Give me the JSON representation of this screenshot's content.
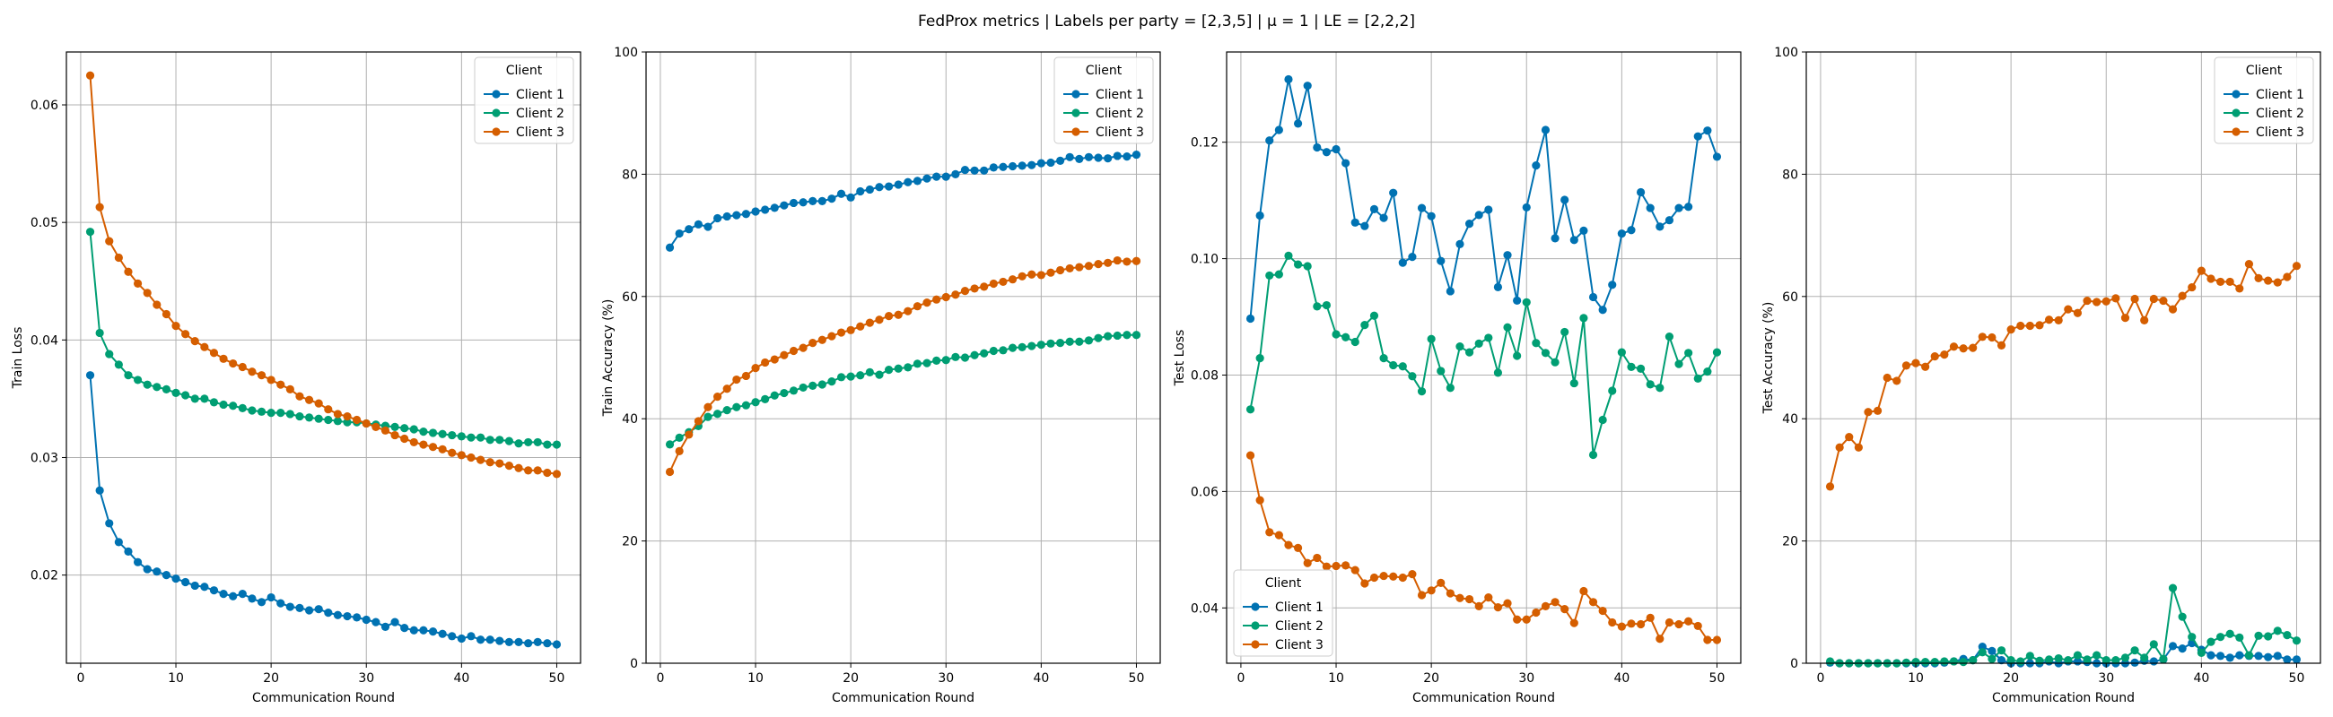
{
  "figure": {
    "title": "FedProx metrics | Labels per party = [2,3,5] | μ = 1 | LE = [2,2,2]"
  },
  "colors": {
    "Client 1": "#0072b2",
    "Client 2": "#009e73",
    "Client 3": "#d55e00"
  },
  "chart_data": [
    {
      "type": "line",
      "xlabel": "Communication Round",
      "ylabel": "Train Loss",
      "xlim": [
        -1.5,
        52.5
      ],
      "ylim": [
        0.0125,
        0.0645
      ],
      "xticks": [
        0,
        10,
        20,
        30,
        40,
        50
      ],
      "yticks": [
        0.02,
        0.03,
        0.04,
        0.05,
        0.06
      ],
      "ytick_labels": [
        "0.02",
        "0.03",
        "0.04",
        "0.05",
        "0.06"
      ],
      "grid": true,
      "legend_title": "Client",
      "legend_position": "upper right",
      "x": [
        1,
        2,
        3,
        4,
        5,
        6,
        7,
        8,
        9,
        10,
        11,
        12,
        13,
        14,
        15,
        16,
        17,
        18,
        19,
        20,
        21,
        22,
        23,
        24,
        25,
        26,
        27,
        28,
        29,
        30,
        31,
        32,
        33,
        34,
        35,
        36,
        37,
        38,
        39,
        40,
        41,
        42,
        43,
        44,
        45,
        46,
        47,
        48,
        49,
        50
      ],
      "series": [
        {
          "name": "Client 1",
          "values": [
            0.037,
            0.0272,
            0.0244,
            0.0228,
            0.022,
            0.0211,
            0.0205,
            0.0203,
            0.02,
            0.0197,
            0.0194,
            0.0191,
            0.019,
            0.0187,
            0.0184,
            0.0182,
            0.0184,
            0.018,
            0.0177,
            0.0181,
            0.0176,
            0.0173,
            0.0172,
            0.017,
            0.0171,
            0.0168,
            0.0166,
            0.0165,
            0.0164,
            0.0162,
            0.016,
            0.0156,
            0.016,
            0.0155,
            0.0153,
            0.0153,
            0.0152,
            0.015,
            0.0148,
            0.0146,
            0.0148,
            0.0145,
            0.0145,
            0.0144,
            0.0143,
            0.0143,
            0.0142,
            0.0143,
            0.0142,
            0.0141
          ]
        },
        {
          "name": "Client 2",
          "values": [
            0.0492,
            0.0406,
            0.0388,
            0.0379,
            0.037,
            0.0366,
            0.0362,
            0.036,
            0.0358,
            0.0355,
            0.0353,
            0.035,
            0.035,
            0.0347,
            0.0345,
            0.0344,
            0.0342,
            0.034,
            0.0339,
            0.0338,
            0.0338,
            0.0337,
            0.0335,
            0.0334,
            0.0333,
            0.0332,
            0.0331,
            0.033,
            0.033,
            0.0329,
            0.0328,
            0.0327,
            0.0326,
            0.0325,
            0.0324,
            0.0322,
            0.0321,
            0.032,
            0.0319,
            0.0318,
            0.0317,
            0.0317,
            0.0315,
            0.0315,
            0.0314,
            0.0312,
            0.0313,
            0.0313,
            0.0311,
            0.0311
          ]
        },
        {
          "name": "Client 3",
          "values": [
            0.0625,
            0.0513,
            0.0484,
            0.047,
            0.0458,
            0.0448,
            0.044,
            0.043,
            0.0422,
            0.0412,
            0.0405,
            0.0399,
            0.0394,
            0.0389,
            0.0384,
            0.038,
            0.0377,
            0.0373,
            0.037,
            0.0366,
            0.0362,
            0.0358,
            0.0352,
            0.0349,
            0.0346,
            0.0341,
            0.0337,
            0.0335,
            0.0332,
            0.0329,
            0.0326,
            0.0323,
            0.0319,
            0.0316,
            0.0313,
            0.0311,
            0.0309,
            0.0307,
            0.0304,
            0.0302,
            0.03,
            0.0298,
            0.0296,
            0.0295,
            0.0293,
            0.0291,
            0.0289,
            0.0289,
            0.0287,
            0.0286
          ]
        }
      ]
    },
    {
      "type": "line",
      "xlabel": "Communication Round",
      "ylabel": "Train Accuracy (%)",
      "xlim": [
        -1.5,
        52.5
      ],
      "ylim": [
        0,
        100
      ],
      "xticks": [
        0,
        10,
        20,
        30,
        40,
        50
      ],
      "yticks": [
        0,
        20,
        40,
        60,
        80,
        100
      ],
      "ytick_labels": [
        "0",
        "20",
        "40",
        "60",
        "80",
        "100"
      ],
      "grid": true,
      "legend_title": "Client",
      "legend_position": "upper right",
      "x": [
        1,
        2,
        3,
        4,
        5,
        6,
        7,
        8,
        9,
        10,
        11,
        12,
        13,
        14,
        15,
        16,
        17,
        18,
        19,
        20,
        21,
        22,
        23,
        24,
        25,
        26,
        27,
        28,
        29,
        30,
        31,
        32,
        33,
        34,
        35,
        36,
        37,
        38,
        39,
        40,
        41,
        42,
        43,
        44,
        45,
        46,
        47,
        48,
        49,
        50
      ],
      "series": [
        {
          "name": "Client 1",
          "values": [
            68.0,
            70.3,
            71.0,
            71.8,
            71.4,
            72.8,
            73.1,
            73.3,
            73.5,
            73.9,
            74.2,
            74.5,
            74.9,
            75.3,
            75.4,
            75.6,
            75.6,
            76.0,
            76.8,
            76.2,
            77.2,
            77.5,
            77.9,
            78.0,
            78.3,
            78.7,
            78.9,
            79.3,
            79.6,
            79.6,
            80.0,
            80.7,
            80.6,
            80.6,
            81.1,
            81.2,
            81.3,
            81.4,
            81.5,
            81.8,
            81.9,
            82.2,
            82.8,
            82.5,
            82.8,
            82.7,
            82.6,
            83.0,
            82.9,
            83.2
          ]
        },
        {
          "name": "Client 2",
          "values": [
            35.8,
            36.9,
            37.8,
            38.8,
            40.3,
            40.8,
            41.4,
            41.9,
            42.2,
            42.7,
            43.2,
            43.8,
            44.2,
            44.6,
            45.1,
            45.4,
            45.6,
            46.1,
            46.8,
            46.9,
            47.1,
            47.6,
            47.2,
            48.0,
            48.2,
            48.4,
            49.0,
            49.1,
            49.5,
            49.6,
            50.1,
            50.0,
            50.4,
            50.7,
            51.1,
            51.2,
            51.6,
            51.7,
            51.9,
            52.1,
            52.3,
            52.4,
            52.6,
            52.6,
            52.8,
            53.2,
            53.5,
            53.6,
            53.7,
            53.7
          ]
        },
        {
          "name": "Client 3",
          "values": [
            31.3,
            34.7,
            37.4,
            39.6,
            41.9,
            43.6,
            44.9,
            46.4,
            47.0,
            48.3,
            49.2,
            49.7,
            50.4,
            51.1,
            51.6,
            52.4,
            52.9,
            53.5,
            54.1,
            54.5,
            55.1,
            55.7,
            56.2,
            56.8,
            57.0,
            57.6,
            58.4,
            59.0,
            59.5,
            59.9,
            60.3,
            60.9,
            61.3,
            61.6,
            62.1,
            62.4,
            62.8,
            63.3,
            63.6,
            63.5,
            63.9,
            64.3,
            64.6,
            64.8,
            65.0,
            65.3,
            65.5,
            65.9,
            65.7,
            65.8
          ]
        }
      ]
    },
    {
      "type": "line",
      "xlabel": "Communication Round",
      "ylabel": "Test Loss",
      "xlim": [
        -1.5,
        52.5
      ],
      "ylim": [
        0.0305,
        0.1355
      ],
      "xticks": [
        0,
        10,
        20,
        30,
        40,
        50
      ],
      "yticks": [
        0.04,
        0.06,
        0.08,
        0.1,
        0.12
      ],
      "ytick_labels": [
        "0.04",
        "0.06",
        "0.08",
        "0.10",
        "0.12"
      ],
      "grid": true,
      "legend_title": "Client",
      "legend_position": "lower left",
      "x": [
        1,
        2,
        3,
        4,
        5,
        6,
        7,
        8,
        9,
        10,
        11,
        12,
        13,
        14,
        15,
        16,
        17,
        18,
        19,
        20,
        21,
        22,
        23,
        24,
        25,
        26,
        27,
        28,
        29,
        30,
        31,
        32,
        33,
        34,
        35,
        36,
        37,
        38,
        39,
        40,
        41,
        42,
        43,
        44,
        45,
        46,
        47,
        48,
        49,
        50
      ],
      "series": [
        {
          "name": "Client 1",
          "values": [
            0.0897,
            0.1074,
            0.1203,
            0.1221,
            0.1308,
            0.1232,
            0.1297,
            0.1191,
            0.1183,
            0.1188,
            0.1164,
            0.1062,
            0.1056,
            0.1085,
            0.107,
            0.1113,
            0.0993,
            0.1003,
            0.1087,
            0.1073,
            0.0996,
            0.0944,
            0.1025,
            0.106,
            0.1075,
            0.1084,
            0.0951,
            0.1006,
            0.0928,
            0.1088,
            0.116,
            0.1221,
            0.1035,
            0.1101,
            0.1032,
            0.1048,
            0.0934,
            0.0912,
            0.0955,
            0.1043,
            0.1049,
            0.1114,
            0.1087,
            0.1055,
            0.1066,
            0.1087,
            0.1089,
            0.121,
            0.122,
            0.1175
          ]
        },
        {
          "name": "Client 2",
          "values": [
            0.0741,
            0.0829,
            0.0971,
            0.0973,
            0.1005,
            0.099,
            0.0987,
            0.0918,
            0.092,
            0.087,
            0.0865,
            0.0857,
            0.0886,
            0.0902,
            0.0829,
            0.0817,
            0.0815,
            0.0798,
            0.0772,
            0.0862,
            0.0807,
            0.0778,
            0.0849,
            0.0839,
            0.0854,
            0.0864,
            0.0804,
            0.0882,
            0.0833,
            0.0925,
            0.0855,
            0.0838,
            0.0822,
            0.0874,
            0.0786,
            0.0898,
            0.0663,
            0.0723,
            0.0773,
            0.0839,
            0.0814,
            0.0811,
            0.0784,
            0.0778,
            0.0866,
            0.0819,
            0.0838,
            0.0794,
            0.0806,
            0.0839
          ]
        },
        {
          "name": "Client 3",
          "values": [
            0.0662,
            0.0585,
            0.053,
            0.0525,
            0.0508,
            0.0503,
            0.0477,
            0.0486,
            0.0471,
            0.0472,
            0.0473,
            0.0465,
            0.0442,
            0.0452,
            0.0455,
            0.0454,
            0.0452,
            0.0458,
            0.0422,
            0.043,
            0.0443,
            0.0425,
            0.0417,
            0.0415,
            0.0403,
            0.0418,
            0.0401,
            0.0408,
            0.038,
            0.038,
            0.0392,
            0.0403,
            0.041,
            0.0398,
            0.0374,
            0.0429,
            0.041,
            0.0395,
            0.0375,
            0.0368,
            0.0373,
            0.0372,
            0.0383,
            0.0347,
            0.0375,
            0.0372,
            0.0377,
            0.0369,
            0.0345,
            0.0345
          ]
        }
      ]
    },
    {
      "type": "line",
      "xlabel": "Communication Round",
      "ylabel": "Test Accuracy (%)",
      "xlim": [
        -1.5,
        52.5
      ],
      "ylim": [
        0,
        100
      ],
      "xticks": [
        0,
        10,
        20,
        30,
        40,
        50
      ],
      "yticks": [
        0,
        20,
        40,
        60,
        80,
        100
      ],
      "ytick_labels": [
        "0",
        "20",
        "40",
        "60",
        "80",
        "100"
      ],
      "grid": true,
      "legend_title": "Client",
      "legend_position": "upper right",
      "x": [
        1,
        2,
        3,
        4,
        5,
        6,
        7,
        8,
        9,
        10,
        11,
        12,
        13,
        14,
        15,
        16,
        17,
        18,
        19,
        20,
        21,
        22,
        23,
        24,
        25,
        26,
        27,
        28,
        29,
        30,
        31,
        32,
        33,
        34,
        35,
        36,
        37,
        38,
        39,
        40,
        41,
        42,
        43,
        44,
        45,
        46,
        47,
        48,
        49,
        50
      ],
      "series": [
        {
          "name": "Client 1",
          "values": [
            0.1,
            0.0,
            0.0,
            0.0,
            0.0,
            0.0,
            0.0,
            0.0,
            0.0,
            0.0,
            0.0,
            0.0,
            0.1,
            0.3,
            0.7,
            0.5,
            2.7,
            2.0,
            0.5,
            0.0,
            0.0,
            0.0,
            0.0,
            0.3,
            0.0,
            0.3,
            0.3,
            0.2,
            0.0,
            0.0,
            0.0,
            0.0,
            0.1,
            0.4,
            0.3,
            0.6,
            2.8,
            2.4,
            3.3,
            2.2,
            1.3,
            1.2,
            0.9,
            1.3,
            1.2,
            1.2,
            1.0,
            1.2,
            0.6,
            0.6
          ]
        },
        {
          "name": "Client 2",
          "values": [
            0.3,
            0.0,
            0.0,
            0.0,
            0.0,
            0.0,
            0.0,
            0.0,
            0.1,
            0.2,
            0.2,
            0.2,
            0.3,
            0.3,
            0.2,
            0.5,
            1.8,
            0.7,
            2.1,
            0.5,
            0.3,
            1.2,
            0.4,
            0.6,
            0.8,
            0.5,
            1.3,
            0.6,
            1.3,
            0.5,
            0.5,
            0.9,
            2.1,
            0.9,
            3.1,
            0.7,
            12.3,
            7.6,
            4.3,
            1.7,
            3.5,
            4.3,
            4.8,
            4.2,
            1.3,
            4.5,
            4.4,
            5.3,
            4.6,
            3.7
          ]
        },
        {
          "name": "Client 3",
          "values": [
            28.9,
            35.3,
            37.0,
            35.3,
            41.1,
            41.3,
            46.7,
            46.2,
            48.7,
            49.1,
            48.5,
            50.2,
            50.5,
            51.8,
            51.5,
            51.6,
            53.4,
            53.3,
            52.0,
            54.6,
            55.2,
            55.2,
            55.3,
            56.2,
            56.1,
            57.9,
            57.3,
            59.3,
            59.1,
            59.2,
            59.7,
            56.5,
            59.6,
            56.1,
            59.6,
            59.3,
            57.9,
            60.1,
            61.5,
            64.2,
            62.9,
            62.4,
            62.4,
            61.3,
            65.3,
            63.0,
            62.6,
            62.3,
            63.2,
            65.0
          ]
        }
      ]
    }
  ]
}
